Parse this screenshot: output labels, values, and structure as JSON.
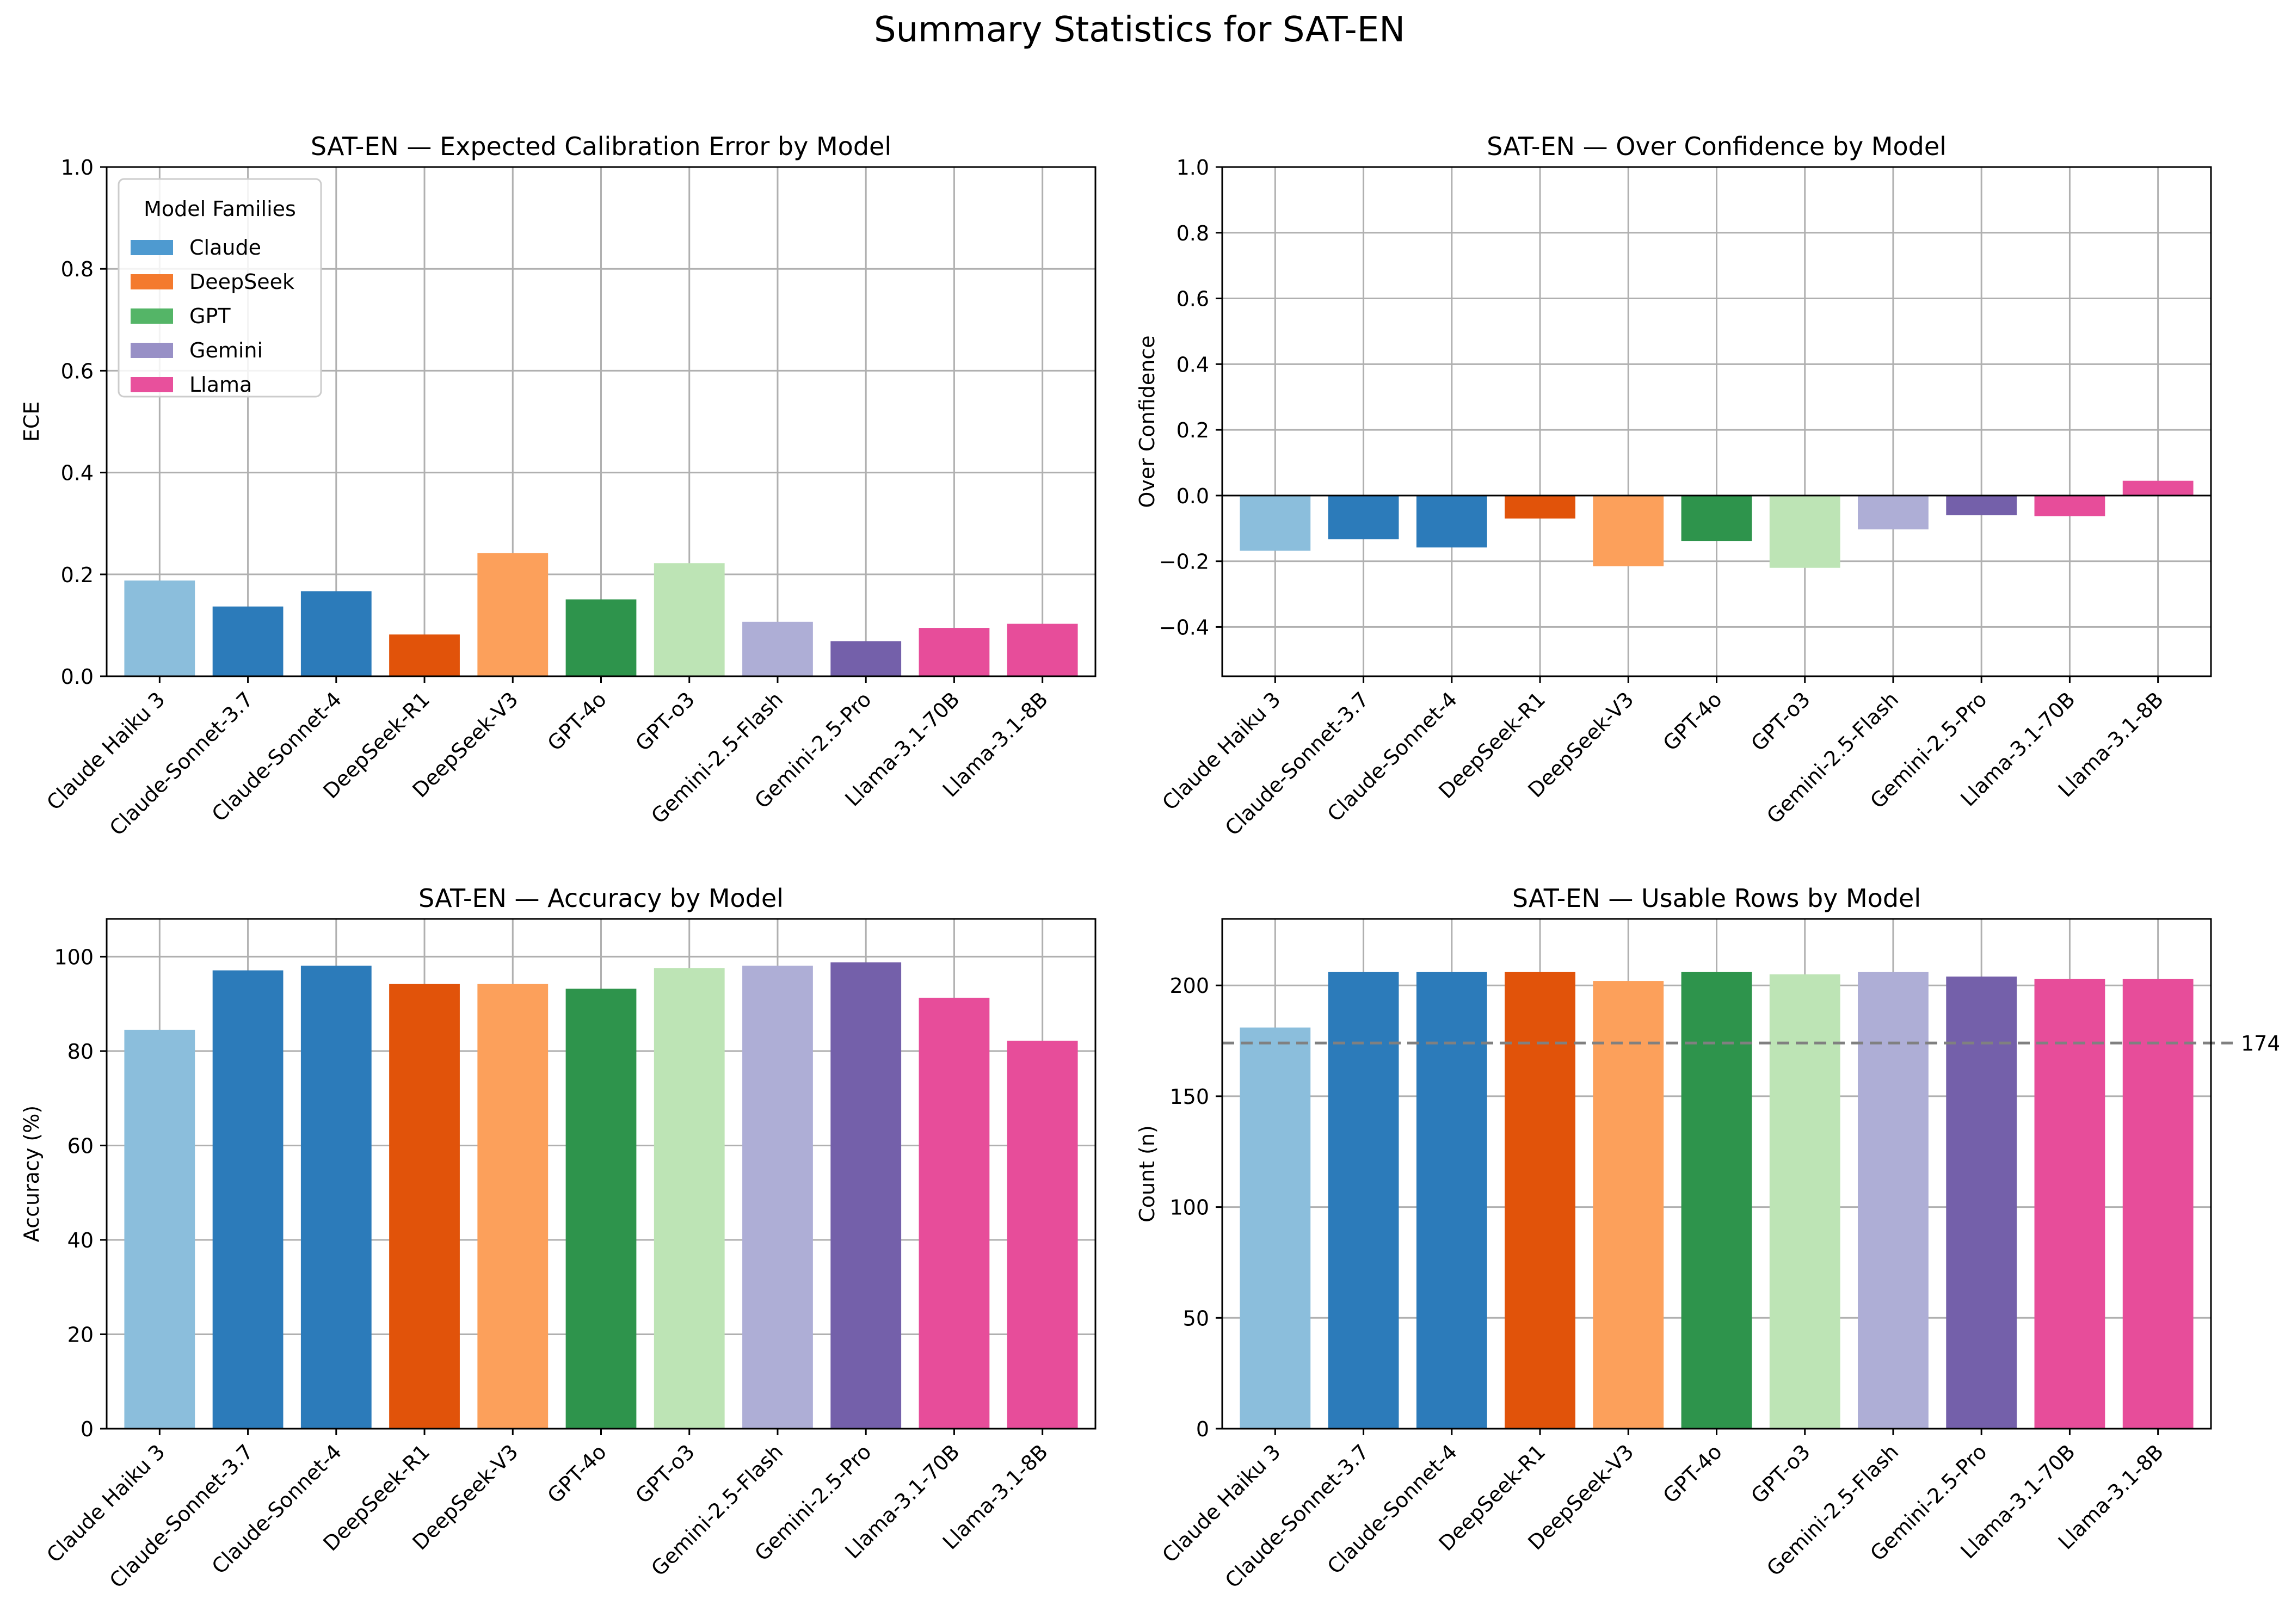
{
  "figure_title": "Summary Statistics for SAT-EN",
  "legend": {
    "title": "Model Families",
    "entries": [
      {
        "label": "Claude",
        "color": "#4e9ad0"
      },
      {
        "label": "DeepSeek",
        "color": "#f47a2e"
      },
      {
        "label": "GPT",
        "color": "#54b567"
      },
      {
        "label": "Gemini",
        "color": "#9890c6"
      },
      {
        "label": "Llama",
        "color": "#e8509c"
      }
    ]
  },
  "colors": [
    "#8bbedc",
    "#2c7bba",
    "#2c7bba",
    "#e1530a",
    "#fca05b",
    "#2e944c",
    "#bde4b5",
    "#aeaed6",
    "#7460aa",
    "#e74d9a",
    "#e74d9a"
  ],
  "chart_data": [
    {
      "type": "bar",
      "title": "SAT-EN — Expected Calibration Error by Model",
      "ylabel": "ECE",
      "xlabel": "",
      "categories": [
        "Claude Haiku 3",
        "Claude-Sonnet-3.7",
        "Claude-Sonnet-4",
        "DeepSeek-R1",
        "DeepSeek-V3",
        "GPT-4o",
        "GPT-o3",
        "Gemini-2.5-Flash",
        "Gemini-2.5-Pro",
        "Llama-3.1-70B",
        "Llama-3.1-8B"
      ],
      "values": [
        0.188,
        0.137,
        0.167,
        0.082,
        0.242,
        0.151,
        0.222,
        0.107,
        0.069,
        0.095,
        0.103
      ],
      "ylim": [
        0,
        1.0
      ],
      "yticks": [
        0.0,
        0.2,
        0.4,
        0.6,
        0.8,
        1.0
      ],
      "ytick_labels": [
        "0.0",
        "0.2",
        "0.4",
        "0.6",
        "0.8",
        "1.0"
      ],
      "grid": true,
      "legend": "upper-left"
    },
    {
      "type": "bar",
      "title": "SAT-EN — Over Confidence by Model",
      "ylabel": "Over Confidence",
      "xlabel": "",
      "categories": [
        "Claude Haiku 3",
        "Claude-Sonnet-3.7",
        "Claude-Sonnet-4",
        "DeepSeek-R1",
        "DeepSeek-V3",
        "GPT-4o",
        "GPT-o3",
        "Gemini-2.5-Flash",
        "Gemini-2.5-Pro",
        "Llama-3.1-70B",
        "Llama-3.1-8B"
      ],
      "values": [
        -0.168,
        -0.133,
        -0.158,
        -0.07,
        -0.215,
        -0.138,
        -0.22,
        -0.103,
        -0.06,
        -0.063,
        0.045
      ],
      "ylim": [
        -0.55,
        1.0
      ],
      "yticks": [
        -0.4,
        -0.2,
        0.0,
        0.2,
        0.4,
        0.6,
        0.8,
        1.0
      ],
      "ytick_labels": [
        "−0.4",
        "−0.2",
        "0.0",
        "0.2",
        "0.4",
        "0.6",
        "0.8",
        "1.0"
      ],
      "grid": true,
      "zero_line": true
    },
    {
      "type": "bar",
      "title": "SAT-EN — Accuracy by Model",
      "ylabel": "Accuracy (%)",
      "xlabel": "",
      "categories": [
        "Claude Haiku 3",
        "Claude-Sonnet-3.7",
        "Claude-Sonnet-4",
        "DeepSeek-R1",
        "DeepSeek-V3",
        "GPT-4o",
        "GPT-o3",
        "Gemini-2.5-Flash",
        "Gemini-2.5-Pro",
        "Llama-3.1-70B",
        "Llama-3.1-8B"
      ],
      "values": [
        84.5,
        97.1,
        98.1,
        94.2,
        94.2,
        93.2,
        97.6,
        98.1,
        98.8,
        91.3,
        82.2
      ],
      "ylim": [
        0,
        108
      ],
      "yticks": [
        0,
        20,
        40,
        60,
        80,
        100
      ],
      "ytick_labels": [
        "0",
        "20",
        "40",
        "60",
        "80",
        "100"
      ],
      "grid": true
    },
    {
      "type": "bar",
      "title": "SAT-EN — Usable Rows by Model",
      "ylabel": "Count (n)",
      "xlabel": "",
      "categories": [
        "Claude Haiku 3",
        "Claude-Sonnet-3.7",
        "Claude-Sonnet-4",
        "DeepSeek-R1",
        "DeepSeek-V3",
        "GPT-4o",
        "GPT-o3",
        "Gemini-2.5-Flash",
        "Gemini-2.5-Pro",
        "Llama-3.1-70B",
        "Llama-3.1-8B"
      ],
      "values": [
        181,
        206,
        206,
        206,
        202,
        206,
        205,
        206,
        204,
        203,
        203
      ],
      "ylim": [
        0,
        230
      ],
      "yticks": [
        0,
        50,
        100,
        150,
        200
      ],
      "ytick_labels": [
        "0",
        "50",
        "100",
        "150",
        "200"
      ],
      "grid": true,
      "reference_line": {
        "value": 174,
        "label": "174",
        "style": "dashed",
        "color": "#808080"
      }
    }
  ]
}
